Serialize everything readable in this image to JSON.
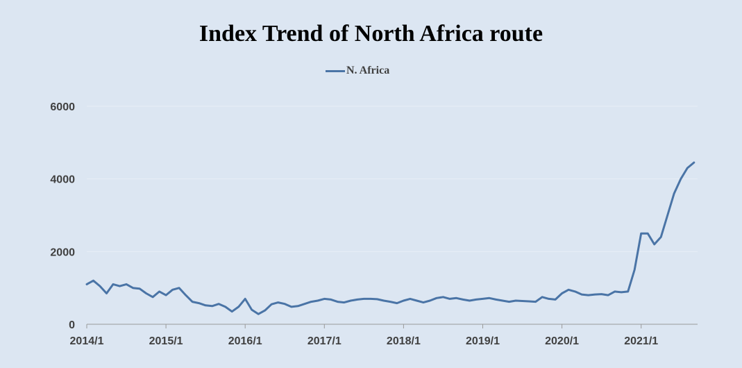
{
  "chart_data": {
    "type": "line",
    "title": "Index Trend of North Africa route",
    "xlabel": "",
    "ylabel": "",
    "ylim": [
      0,
      6000
    ],
    "yticks": [
      0,
      2000,
      4000,
      6000
    ],
    "xticks": [
      "2014/1",
      "2015/1",
      "2016/1",
      "2017/1",
      "2018/1",
      "2019/1",
      "2020/1",
      "2021/1"
    ],
    "grid": true,
    "legend_position": "top-center",
    "colors": {
      "series": "#4a74a6",
      "background": "#dce6f2",
      "grid": "#e8eef6",
      "axis": "#999999"
    },
    "series": [
      {
        "name": "N. Africa",
        "x": [
          "2014-01",
          "2014-02",
          "2014-03",
          "2014-04",
          "2014-05",
          "2014-06",
          "2014-07",
          "2014-08",
          "2014-09",
          "2014-10",
          "2014-11",
          "2014-12",
          "2015-01",
          "2015-02",
          "2015-03",
          "2015-04",
          "2015-05",
          "2015-06",
          "2015-07",
          "2015-08",
          "2015-09",
          "2015-10",
          "2015-11",
          "2015-12",
          "2016-01",
          "2016-02",
          "2016-03",
          "2016-04",
          "2016-05",
          "2016-06",
          "2016-07",
          "2016-08",
          "2016-09",
          "2016-10",
          "2016-11",
          "2016-12",
          "2017-01",
          "2017-02",
          "2017-03",
          "2017-04",
          "2017-05",
          "2017-06",
          "2017-07",
          "2017-08",
          "2017-09",
          "2017-10",
          "2017-11",
          "2017-12",
          "2018-01",
          "2018-02",
          "2018-03",
          "2018-04",
          "2018-05",
          "2018-06",
          "2018-07",
          "2018-08",
          "2018-09",
          "2018-10",
          "2018-11",
          "2018-12",
          "2019-01",
          "2019-02",
          "2019-03",
          "2019-04",
          "2019-05",
          "2019-06",
          "2019-07",
          "2019-08",
          "2019-09",
          "2019-10",
          "2019-11",
          "2019-12",
          "2020-01",
          "2020-02",
          "2020-03",
          "2020-04",
          "2020-05",
          "2020-06",
          "2020-07",
          "2020-08",
          "2020-09",
          "2020-10",
          "2020-11",
          "2020-12",
          "2021-01",
          "2021-02",
          "2021-03",
          "2021-04",
          "2021-05",
          "2021-06",
          "2021-07",
          "2021-08",
          "2021-09"
        ],
        "values": [
          1100,
          1200,
          1050,
          850,
          1100,
          1050,
          1100,
          1000,
          980,
          850,
          750,
          900,
          800,
          950,
          1000,
          800,
          620,
          580,
          520,
          500,
          560,
          480,
          350,
          480,
          700,
          400,
          280,
          380,
          550,
          600,
          560,
          480,
          500,
          560,
          620,
          650,
          700,
          680,
          620,
          600,
          650,
          680,
          700,
          700,
          690,
          650,
          620,
          580,
          650,
          700,
          650,
          600,
          650,
          720,
          750,
          700,
          720,
          680,
          650,
          680,
          700,
          720,
          680,
          650,
          620,
          650,
          640,
          630,
          620,
          750,
          700,
          680,
          850,
          950,
          900,
          820,
          800,
          820,
          830,
          800,
          900,
          880,
          900,
          1500,
          2500,
          2500,
          2200,
          2400,
          3000,
          3600,
          4000,
          4300,
          4450
        ]
      }
    ]
  }
}
